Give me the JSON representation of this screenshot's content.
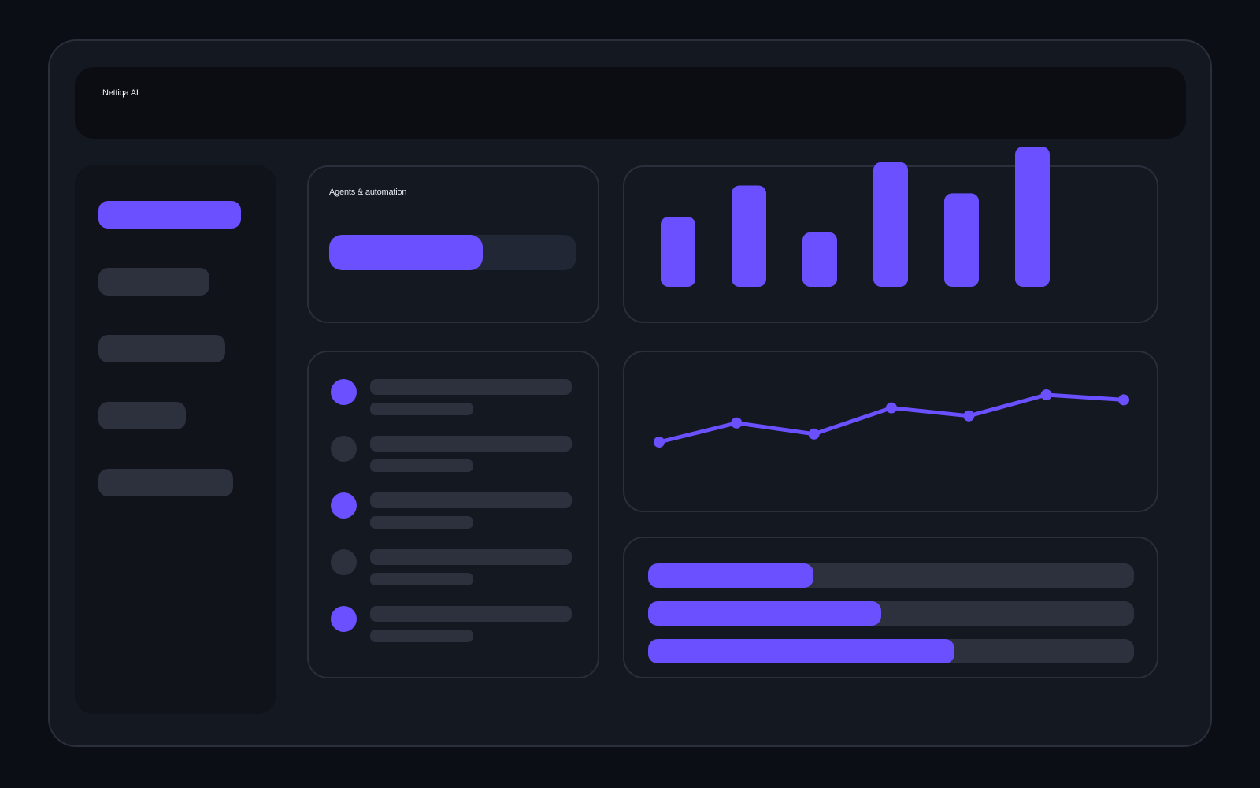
{
  "app": {
    "title": "Nettiqa AI"
  },
  "colors": {
    "accent": "#6b50ff",
    "muted": "#2c313d",
    "background": "#0b0e15",
    "panel": "#141821"
  },
  "sidebar": {
    "items": [
      {
        "state": "active"
      },
      {
        "state": "inactive"
      },
      {
        "state": "inactive"
      },
      {
        "state": "inactive"
      },
      {
        "state": "inactive"
      }
    ]
  },
  "agents_card": {
    "label": "Agents & automation",
    "progress": 0.62
  },
  "activity_list": {
    "items": [
      {
        "status": "active"
      },
      {
        "status": "inactive"
      },
      {
        "status": "active"
      },
      {
        "status": "inactive"
      },
      {
        "status": "active"
      }
    ]
  },
  "chart_data": [
    {
      "type": "bar",
      "values": [
        90,
        130,
        70,
        160,
        120,
        180
      ],
      "ylim": [
        0,
        180
      ]
    },
    {
      "type": "line",
      "values": [
        0,
        19,
        8,
        34,
        26,
        47,
        42
      ],
      "ylim": [
        0,
        50
      ]
    },
    {
      "type": "bar",
      "orientation": "horizontal",
      "values": [
        0.34,
        0.48,
        0.63
      ],
      "ylim": [
        0,
        1
      ]
    }
  ]
}
